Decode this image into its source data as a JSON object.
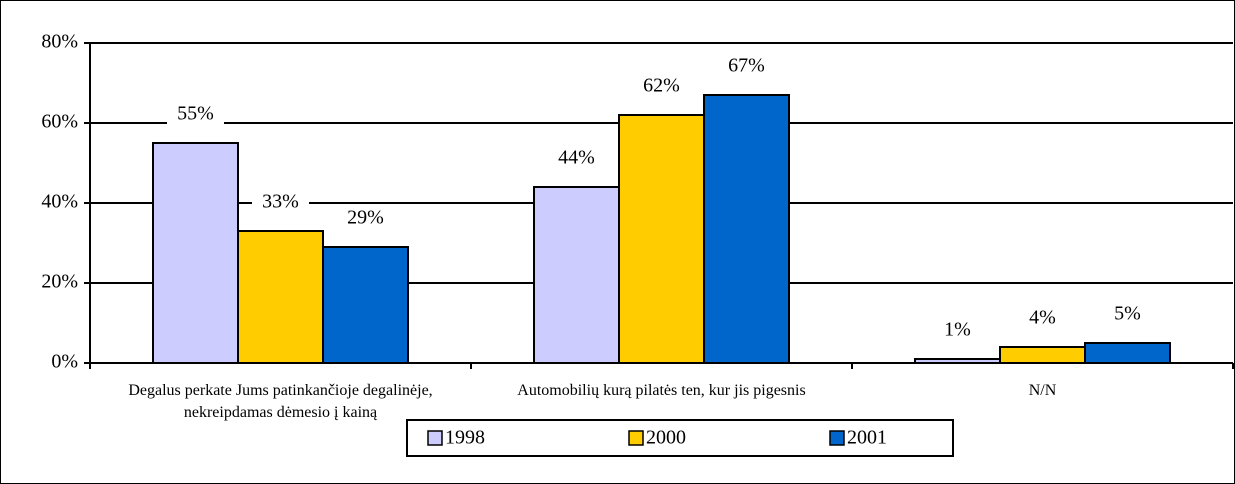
{
  "chart_data": {
    "type": "bar",
    "categories": [
      "Degalus perkate Jums patinkančioje degalinėje, nekreipdamas dėmesio į kainą",
      "Automobilių kurą pilatės ten, kur jis pigesnis",
      "N/N"
    ],
    "series": [
      {
        "name": "1998",
        "color": "#ccccff",
        "values": [
          55,
          44,
          1
        ],
        "value_labels": [
          "55%",
          "44%",
          "1%"
        ]
      },
      {
        "name": "2000",
        "color": "#ffcc00",
        "values": [
          33,
          62,
          4
        ],
        "value_labels": [
          "33%",
          "62%",
          "4%"
        ]
      },
      {
        "name": "2001",
        "color": "#0066cc",
        "values": [
          29,
          67,
          5
        ],
        "value_labels": [
          "29%",
          "67%",
          "5%"
        ]
      }
    ],
    "ylim": [
      0,
      80
    ],
    "yticks": [
      {
        "value": 0,
        "label": "0%"
      },
      {
        "value": 20,
        "label": "20%"
      },
      {
        "value": 40,
        "label": "40%"
      },
      {
        "value": 60,
        "label": "60%"
      },
      {
        "value": 80,
        "label": "80%"
      }
    ],
    "grid": true,
    "legend": "bottom"
  }
}
